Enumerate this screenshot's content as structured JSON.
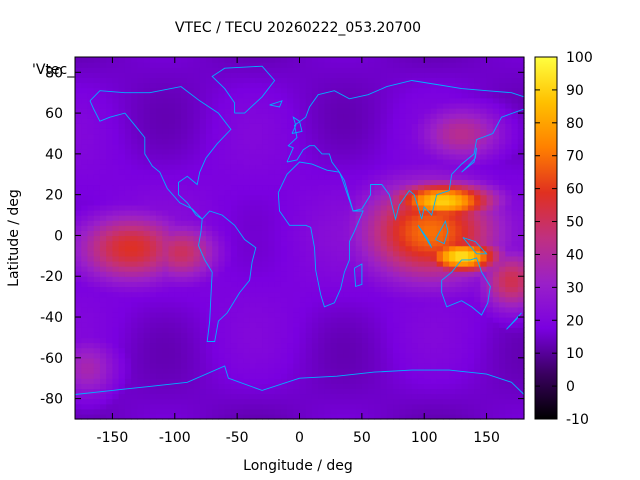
{
  "chart_data": {
    "type": "heatmap",
    "title": "VTEC / TECU 20260222_053.20700",
    "xlabel": "Longitude / deg",
    "ylabel": "Latitude / deg",
    "xlim": [
      -180,
      180
    ],
    "ylim": [
      -90,
      87.5
    ],
    "x_ticks": [
      -150,
      -100,
      -50,
      0,
      50,
      100,
      150
    ],
    "y_ticks": [
      -80,
      -60,
      -40,
      -20,
      0,
      20,
      40,
      60,
      80
    ],
    "colorbar": {
      "range": [
        -10,
        100
      ],
      "ticks": [
        -10,
        0,
        10,
        20,
        30,
        40,
        50,
        60,
        70,
        80,
        90,
        100
      ],
      "palette": [
        "#000000",
        "#3a0060",
        "#7a00e0",
        "#9a20c8",
        "#c03080",
        "#e03020",
        "#ff8000",
        "#ffc000",
        "#ffff40"
      ]
    },
    "overlay_label": "'Vtec_",
    "overlay": "coastlines",
    "coastline_color": "#00b0ff",
    "features": [
      {
        "lon": 115,
        "lat": 17,
        "value": 78,
        "sigma_lon": 40,
        "sigma_lat": 9
      },
      {
        "lon": 130,
        "lat": -10,
        "value": 82,
        "sigma_lon": 30,
        "sigma_lat": 8
      },
      {
        "lon": 105,
        "lat": 2,
        "value": 58,
        "sigma_lon": 55,
        "sigma_lat": 24
      },
      {
        "lon": -135,
        "lat": -6,
        "value": 46,
        "sigma_lon": 45,
        "sigma_lat": 17
      },
      {
        "lon": -95,
        "lat": -8,
        "value": 38,
        "sigma_lon": 30,
        "sigma_lat": 14
      },
      {
        "lon": 170,
        "lat": -22,
        "value": 40,
        "sigma_lon": 25,
        "sigma_lat": 15
      },
      {
        "lon": 130,
        "lat": 50,
        "value": 30,
        "sigma_lon": 35,
        "sigma_lat": 14
      },
      {
        "lon": -170,
        "lat": -65,
        "value": 24,
        "sigma_lon": 25,
        "sigma_lat": 15
      }
    ],
    "background_value": 20
  }
}
